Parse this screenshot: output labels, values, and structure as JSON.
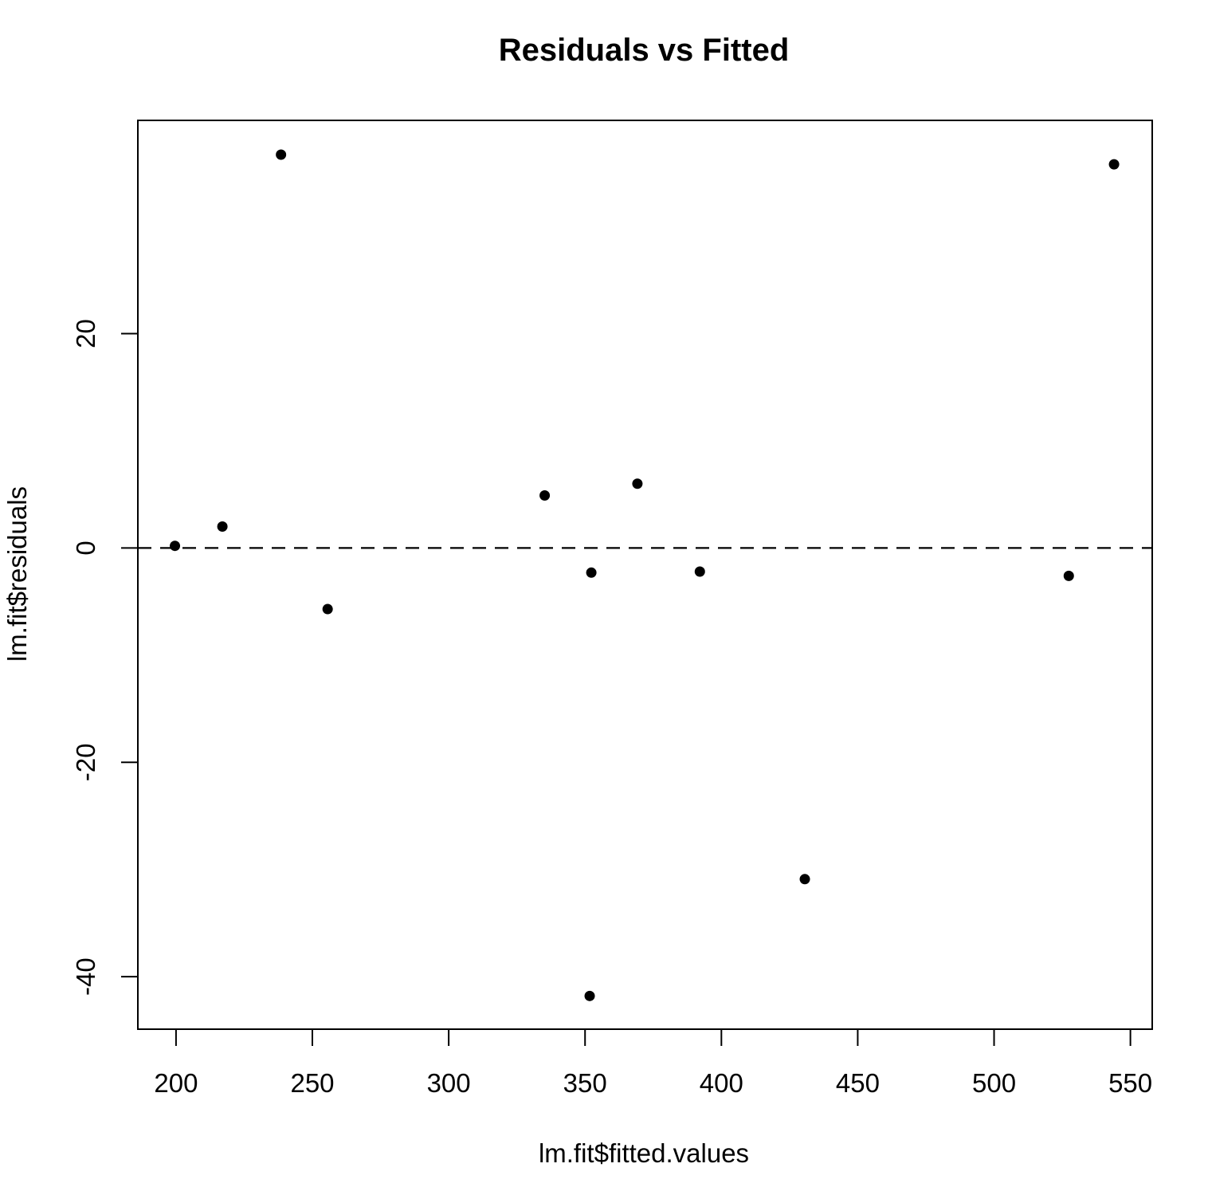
{
  "chart_data": {
    "type": "scatter",
    "title": "Residuals vs Fitted",
    "xlabel": "lm.fit$fitted.values",
    "ylabel": "lm.fit$residuals",
    "xlim": [
      186,
      558
    ],
    "ylim": [
      -44.9,
      39.9
    ],
    "xticks": [
      200,
      250,
      300,
      350,
      400,
      450,
      500,
      550
    ],
    "xtick_labels": [
      "200",
      "250",
      "300",
      "350",
      "400",
      "450",
      "500",
      "550"
    ],
    "yticks": [
      -40,
      -20,
      0,
      20
    ],
    "ytick_labels": [
      "-40",
      "-20",
      "0",
      "20"
    ],
    "grid": false,
    "reference_line": {
      "y": 0,
      "style": "dashed"
    },
    "points": [
      {
        "x": 199.6,
        "y": 0.2
      },
      {
        "x": 217.0,
        "y": 2.0
      },
      {
        "x": 238.5,
        "y": 36.7
      },
      {
        "x": 255.6,
        "y": -5.7
      },
      {
        "x": 335.2,
        "y": 4.9
      },
      {
        "x": 351.7,
        "y": -41.8
      },
      {
        "x": 352.3,
        "y": -2.3
      },
      {
        "x": 369.2,
        "y": 6.0
      },
      {
        "x": 392.1,
        "y": -2.2
      },
      {
        "x": 430.6,
        "y": -30.9
      },
      {
        "x": 527.4,
        "y": -2.6
      },
      {
        "x": 544.0,
        "y": 35.8
      }
    ],
    "colors": {
      "point": "#000000",
      "axis": "#000000",
      "background": "#ffffff"
    }
  }
}
